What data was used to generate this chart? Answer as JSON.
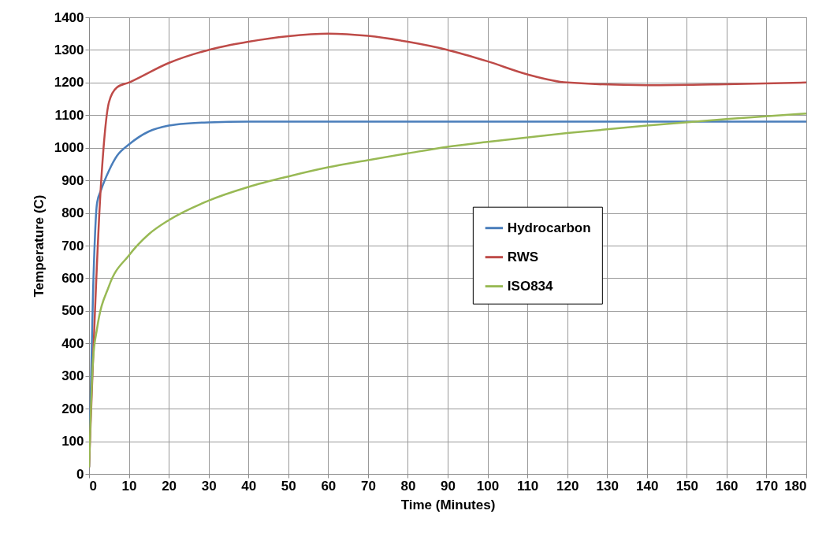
{
  "chart_data": {
    "type": "line",
    "xlabel": "Time (Minutes)",
    "ylabel": "Temperature (C)",
    "xlim": [
      0,
      180
    ],
    "ylim": [
      0,
      1400
    ],
    "xticks": [
      0,
      10,
      20,
      30,
      40,
      50,
      60,
      70,
      80,
      90,
      100,
      110,
      120,
      130,
      140,
      150,
      160,
      170,
      180
    ],
    "yticks": [
      0,
      100,
      200,
      300,
      400,
      500,
      600,
      700,
      800,
      900,
      1000,
      1100,
      1200,
      1300,
      1400
    ],
    "grid": true,
    "legend": "right",
    "marker": "none",
    "line_style": "solid",
    "series": [
      {
        "name": "Hydrocarbon",
        "color": "#4a7ebb",
        "x": [
          0,
          1,
          2,
          3,
          5,
          7,
          10,
          15,
          20,
          25,
          30,
          40,
          60,
          90,
          120,
          150,
          180
        ],
        "values": [
          20,
          560,
          830,
          870,
          930,
          975,
          1010,
          1050,
          1068,
          1075,
          1078,
          1080,
          1080,
          1080,
          1080,
          1080,
          1080
        ]
      },
      {
        "name": "RWS",
        "color": "#be4b48",
        "x": [
          0,
          3,
          5,
          7,
          10,
          20,
          30,
          40,
          50,
          60,
          70,
          80,
          90,
          100,
          110,
          120,
          140,
          160,
          180
        ],
        "values": [
          20,
          890,
          1140,
          1185,
          1200,
          1260,
          1300,
          1325,
          1342,
          1350,
          1343,
          1325,
          1300,
          1265,
          1225,
          1200,
          1192,
          1195,
          1200
        ]
      },
      {
        "name": "ISO834",
        "color": "#98b954",
        "x": [
          0,
          1,
          2,
          5,
          10,
          15,
          20,
          30,
          40,
          50,
          60,
          70,
          80,
          90,
          100,
          120,
          140,
          160,
          180
        ],
        "values": [
          20,
          349,
          445,
          576,
          670,
          735,
          778,
          838,
          880,
          912,
          940,
          962,
          983,
          1003,
          1018,
          1045,
          1068,
          1088,
          1105
        ]
      }
    ]
  }
}
